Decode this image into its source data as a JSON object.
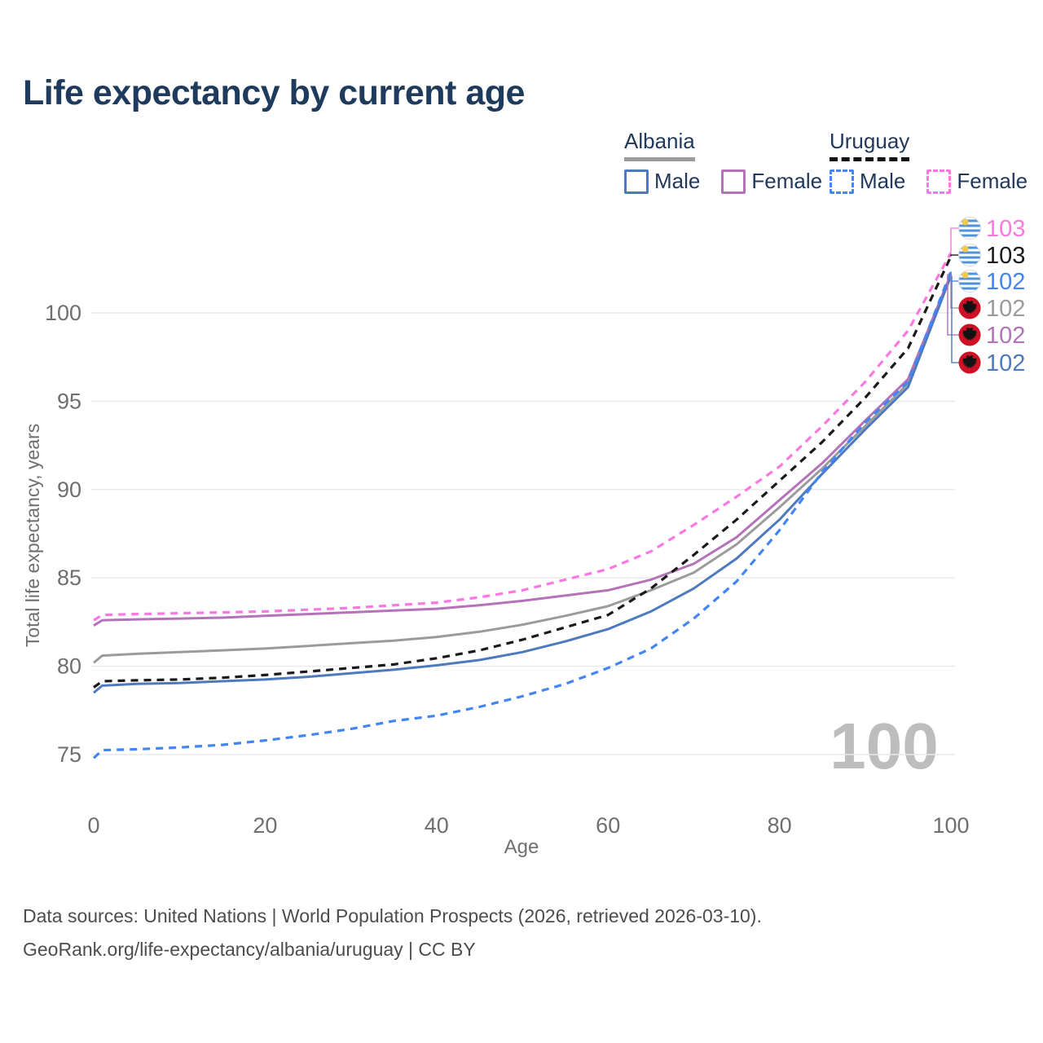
{
  "title": "Life expectancy by current age",
  "legend": {
    "groups": [
      {
        "country": "Albania",
        "line_style": "solid",
        "underline_color": "#9b9b9b",
        "items": [
          {
            "label": "Male",
            "color": "#4d7abf",
            "dashed": false
          },
          {
            "label": "Female",
            "color": "#b472b8",
            "dashed": false
          }
        ]
      },
      {
        "country": "Uruguay",
        "line_style": "dashed",
        "underline_color": "#141414",
        "items": [
          {
            "label": "Male",
            "color": "#4285f4",
            "dashed": true
          },
          {
            "label": "Female",
            "color": "#fb78e2",
            "dashed": true
          }
        ]
      }
    ]
  },
  "chart_data": {
    "type": "line",
    "title": "Life expectancy by current age",
    "xlabel": "Age",
    "ylabel": "Total life expectancy, years",
    "xlim": [
      0,
      100
    ],
    "ylim": [
      73,
      104.5
    ],
    "x_ticks": [
      0,
      20,
      40,
      60,
      80,
      100
    ],
    "y_ticks": [
      75,
      80,
      85,
      90,
      95,
      100
    ],
    "grid": "horizontal-only",
    "legend_position": "top-right",
    "watermark": "100",
    "x": [
      0,
      1,
      5,
      10,
      15,
      20,
      25,
      30,
      35,
      40,
      45,
      50,
      55,
      60,
      65,
      70,
      75,
      80,
      85,
      90,
      95,
      100
    ],
    "series": [
      {
        "name": "Uruguay Female",
        "color": "#fb78e2",
        "dashed": true,
        "flag": "uruguay",
        "end_label": "103",
        "values": [
          82.6,
          82.9,
          82.95,
          83.0,
          83.05,
          83.1,
          83.2,
          83.3,
          83.45,
          83.6,
          83.9,
          84.3,
          84.9,
          85.5,
          86.5,
          88.0,
          89.6,
          91.3,
          93.6,
          96.1,
          99.0,
          103.4
        ]
      },
      {
        "name": "Uruguay Both sexes",
        "color": "#1a1a1a",
        "dashed": true,
        "flag": "uruguay",
        "end_label": "103",
        "values": [
          78.8,
          79.15,
          79.2,
          79.25,
          79.35,
          79.5,
          79.7,
          79.9,
          80.1,
          80.45,
          80.9,
          81.5,
          82.2,
          82.9,
          84.4,
          86.3,
          88.3,
          90.5,
          92.7,
          95.2,
          98.0,
          103.2
        ]
      },
      {
        "name": "Uruguay Male",
        "color": "#4285f4",
        "dashed": true,
        "flag": "uruguay",
        "end_label": "102",
        "values": [
          74.8,
          75.25,
          75.3,
          75.4,
          75.55,
          75.8,
          76.1,
          76.45,
          76.9,
          77.2,
          77.7,
          78.3,
          79.0,
          79.9,
          81.0,
          82.7,
          84.8,
          87.7,
          91.0,
          93.8,
          96.1,
          102.35
        ]
      },
      {
        "name": "Albania Both sexes",
        "color": "#9b9b9b",
        "dashed": false,
        "flag": "albania",
        "end_label": "102",
        "values": [
          80.2,
          80.6,
          80.7,
          80.8,
          80.9,
          81.0,
          81.15,
          81.3,
          81.45,
          81.65,
          81.95,
          82.35,
          82.85,
          83.4,
          84.3,
          85.3,
          86.9,
          89.0,
          91.2,
          93.6,
          96.0,
          102.15
        ]
      },
      {
        "name": "Albania Female",
        "color": "#b472b8",
        "dashed": false,
        "flag": "albania",
        "end_label": "102",
        "values": [
          82.3,
          82.6,
          82.65,
          82.7,
          82.75,
          82.85,
          82.95,
          83.05,
          83.15,
          83.25,
          83.45,
          83.7,
          84.0,
          84.3,
          84.9,
          85.8,
          87.3,
          89.4,
          91.5,
          93.9,
          96.25,
          102.2
        ]
      },
      {
        "name": "Albania Male",
        "color": "#4d7abf",
        "dashed": false,
        "flag": "albania",
        "end_label": "102",
        "values": [
          78.5,
          78.9,
          79.0,
          79.05,
          79.15,
          79.25,
          79.4,
          79.6,
          79.8,
          80.05,
          80.35,
          80.8,
          81.4,
          82.1,
          83.1,
          84.4,
          86.1,
          88.3,
          90.9,
          93.4,
          95.8,
          102.1
        ]
      }
    ]
  },
  "footer": {
    "line1": "Data sources: United Nations | World Population Prospects (2026, retrieved 2026-03-10).",
    "line2": "GeoRank.org/life-expectancy/albania/uruguay | CC BY"
  }
}
